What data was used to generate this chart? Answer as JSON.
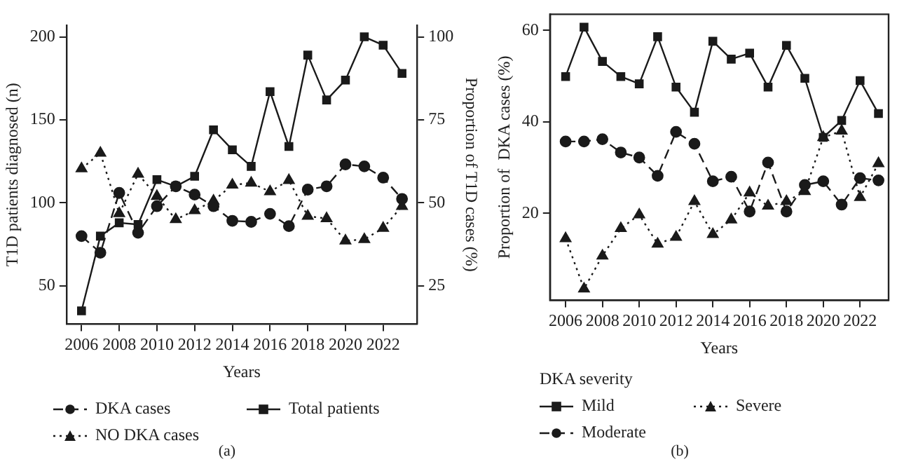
{
  "chart_data": [
    {
      "type": "line",
      "xlabel": "Years",
      "ylabel": "T1D patients diagnosed (n)",
      "y2label": "Proportion of T1D cases (%)",
      "annotations": [
        "(a)"
      ],
      "x": [
        2006,
        2007,
        2008,
        2009,
        2010,
        2011,
        2012,
        2013,
        2014,
        2015,
        2016,
        2017,
        2018,
        2019,
        2020,
        2021,
        2022,
        2023
      ],
      "xlim": [
        2005.2,
        2023.8
      ],
      "xticks": [
        2006,
        2008,
        2010,
        2012,
        2014,
        2016,
        2018,
        2020,
        2022
      ],
      "ylim": [
        27,
        207
      ],
      "yticks": [
        50,
        100,
        150,
        200
      ],
      "y2lim": [
        13.5,
        103.5
      ],
      "y2ticks": [
        25,
        50,
        75,
        100
      ],
      "grid": false,
      "legend": "bottom",
      "series": [
        {
          "name": "DKA cases",
          "color": "#1a1a1a",
          "axis": "y2",
          "marker": "circle",
          "line_style": "dashed",
          "values": [
            40,
            35,
            53,
            41,
            49,
            55,
            52.5,
            49,
            44.6,
            44.3,
            46.7,
            43,
            54,
            55,
            61.6,
            61,
            57.6,
            51.2
          ]
        },
        {
          "name": "NO DKA cases",
          "color": "#1a1a1a",
          "axis": "y2",
          "marker": "triangle",
          "line_style": "dotted",
          "values": [
            60.3,
            65,
            46.8,
            58.7,
            52,
            45,
            47.7,
            50.6,
            55.4,
            56,
            53.4,
            56.8,
            46,
            45.3,
            38.6,
            39,
            42.4,
            49
          ]
        },
        {
          "name": "Total patients",
          "color": "#1a1a1a",
          "marker": "square",
          "line_style": "solid",
          "values": [
            35,
            80,
            88,
            87,
            114,
            110,
            116,
            144,
            132,
            122,
            167,
            134,
            189,
            162,
            174,
            200,
            195,
            178
          ]
        }
      ]
    },
    {
      "type": "line",
      "xlabel": "Years",
      "ylabel": "Proportion of  DKA cases (%)",
      "legend_title": "DKA severity",
      "annotations": [
        "(b)"
      ],
      "x": [
        2006,
        2007,
        2008,
        2009,
        2010,
        2011,
        2012,
        2013,
        2014,
        2015,
        2016,
        2017,
        2018,
        2019,
        2020,
        2021,
        2022,
        2023
      ],
      "xlim": [
        2005.15,
        2023.55
      ],
      "xticks": [
        2006,
        2008,
        2010,
        2012,
        2014,
        2016,
        2018,
        2020,
        2022
      ],
      "ylim": [
        1,
        63.5
      ],
      "yticks": [
        20,
        40,
        60
      ],
      "grid": false,
      "legend": "bottom",
      "series": [
        {
          "name": "Mild",
          "color": "#1a1a1a",
          "marker": "square",
          "line_style": "solid",
          "values": [
            49.9,
            60.7,
            53.2,
            49.9,
            48.3,
            58.6,
            47.6,
            42.1,
            57.6,
            53.7,
            55,
            47.6,
            56.7,
            49.5,
            36.6,
            40.3,
            49,
            41.8
          ]
        },
        {
          "name": "Moderate",
          "color": "#1a1a1a",
          "marker": "circle",
          "line_style": "dashed",
          "values": [
            35.7,
            35.7,
            36.2,
            33.3,
            32.2,
            28.2,
            37.8,
            35.2,
            27,
            28,
            20.4,
            31.1,
            20.4,
            26.2,
            27,
            21.9,
            27.7,
            27.2
          ]
        },
        {
          "name": "Severe",
          "color": "#1a1a1a",
          "marker": "triangle",
          "line_style": "dotted",
          "values": [
            14.5,
            3.5,
            10.7,
            16.7,
            19.7,
            13.3,
            14.8,
            22.6,
            15.4,
            18.6,
            24.5,
            21.6,
            22.6,
            24.8,
            36.6,
            38,
            23.5,
            30.9
          ]
        }
      ]
    }
  ]
}
